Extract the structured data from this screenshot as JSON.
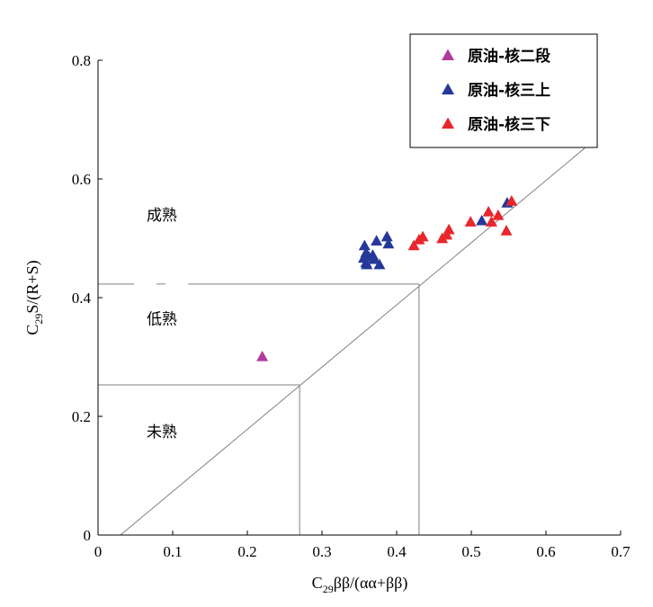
{
  "chart_data": {
    "type": "scatter",
    "xlabel": "C29ββ/(αα+ββ)",
    "xlabel_parts": {
      "base": "C",
      "sub": "29",
      "rest": "ββ/(αα+ββ)"
    },
    "ylabel": "C29S/(R+S)",
    "ylabel_parts": {
      "base": "C",
      "sub": "29",
      "rest": "S/(R+S)"
    },
    "xlim": [
      0,
      0.7
    ],
    "ylim": [
      0,
      0.8
    ],
    "xticks": [
      0,
      0.1,
      0.2,
      0.3,
      0.4,
      0.5,
      0.6,
      0.7
    ],
    "xtick_labels": [
      "0",
      "0.1",
      "0.2",
      "0.3",
      "0.4",
      "0.5",
      "0.6",
      "0.7"
    ],
    "yticks": [
      0,
      0.2,
      0.4,
      0.6,
      0.8
    ],
    "ytick_labels": [
      "0",
      "0.2",
      "0.4",
      "0.6",
      "0.8"
    ],
    "grid": false,
    "legend_position": "top-right",
    "series": [
      {
        "name": "原油-核二段",
        "color": "#b03a9e",
        "marker": "triangle",
        "points": [
          [
            0.22,
            0.3
          ]
        ]
      },
      {
        "name": "原油-核三上",
        "color": "#25389a",
        "marker": "triangle",
        "points": [
          [
            0.357,
            0.487
          ],
          [
            0.359,
            0.475
          ],
          [
            0.356,
            0.466
          ],
          [
            0.359,
            0.458
          ],
          [
            0.363,
            0.468
          ],
          [
            0.368,
            0.471
          ],
          [
            0.37,
            0.464
          ],
          [
            0.373,
            0.495
          ],
          [
            0.377,
            0.455
          ],
          [
            0.387,
            0.502
          ],
          [
            0.389,
            0.49
          ],
          [
            0.36,
            0.455
          ],
          [
            0.514,
            0.529
          ],
          [
            0.548,
            0.559
          ]
        ]
      },
      {
        "name": "原油-核三下",
        "color": "#e8262b",
        "marker": "triangle",
        "points": [
          [
            0.423,
            0.487
          ],
          [
            0.43,
            0.497
          ],
          [
            0.435,
            0.502
          ],
          [
            0.461,
            0.499
          ],
          [
            0.467,
            0.505
          ],
          [
            0.47,
            0.514
          ],
          [
            0.499,
            0.527
          ],
          [
            0.523,
            0.544
          ],
          [
            0.527,
            0.527
          ],
          [
            0.536,
            0.538
          ],
          [
            0.547,
            0.512
          ],
          [
            0.554,
            0.562
          ]
        ]
      }
    ],
    "reference_lines": {
      "diagonal": {
        "from": [
          0.03,
          0
        ],
        "to": [
          0.652,
          0.652
        ]
      },
      "low_mature_box": {
        "x": 0.43,
        "y": 0.423
      },
      "immature_box": {
        "x": 0.27,
        "y": 0.253
      }
    },
    "annotations": [
      {
        "text": "成熟",
        "x": 0.065,
        "y": 0.53
      },
      {
        "text": "低熟",
        "x": 0.065,
        "y": 0.355
      },
      {
        "text": "未熟",
        "x": 0.065,
        "y": 0.165
      }
    ]
  }
}
